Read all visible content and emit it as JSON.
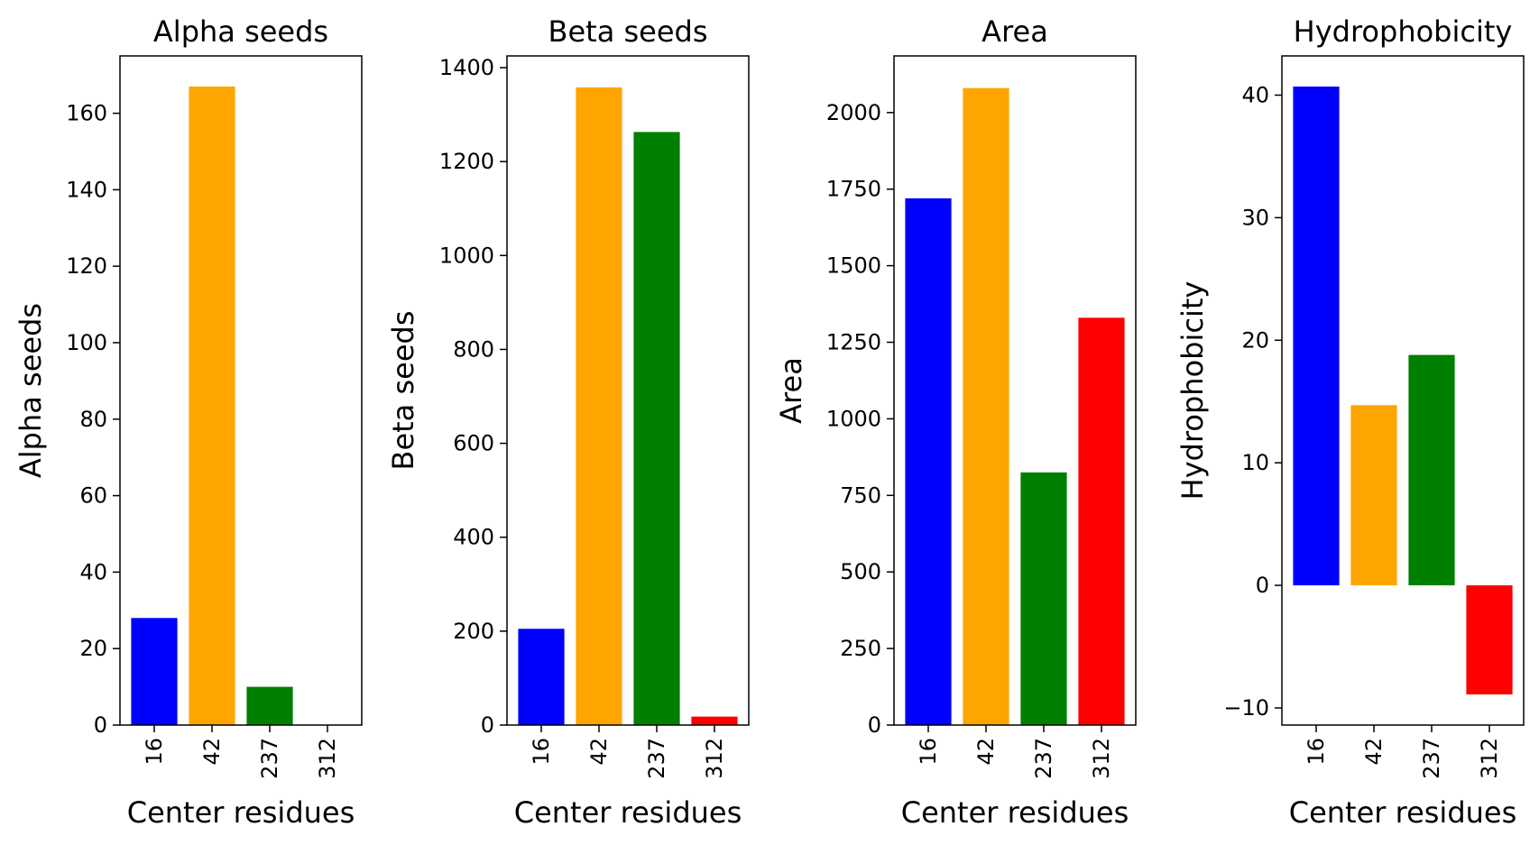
{
  "colors": [
    "#0000ff",
    "#ffa500",
    "#008000",
    "#ff0000"
  ],
  "chart_data": [
    {
      "type": "bar",
      "title": "Alpha seeds",
      "xlabel": "Center residues",
      "ylabel": "Alpha seeds",
      "categories": [
        "16",
        "42",
        "237",
        "312"
      ],
      "values": [
        28,
        167,
        10,
        0
      ],
      "ylim": [
        0,
        175
      ],
      "yticks": [
        0,
        20,
        40,
        60,
        80,
        100,
        120,
        140,
        160
      ],
      "yticklabels": [
        "0",
        "20",
        "40",
        "60",
        "80",
        "100",
        "120",
        "140",
        "160"
      ],
      "grid": false,
      "legend": "none"
    },
    {
      "type": "bar",
      "title": "Beta seeds",
      "xlabel": "Center residues",
      "ylabel": "Beta seeds",
      "categories": [
        "16",
        "42",
        "237",
        "312"
      ],
      "values": [
        205,
        1358,
        1263,
        18
      ],
      "ylim": [
        0,
        1425
      ],
      "yticks": [
        0,
        200,
        400,
        600,
        800,
        1000,
        1200,
        1400
      ],
      "yticklabels": [
        "0",
        "200",
        "400",
        "600",
        "800",
        "1000",
        "1200",
        "1400"
      ],
      "grid": false,
      "legend": "none"
    },
    {
      "type": "bar",
      "title": "Area",
      "xlabel": "Center residues",
      "ylabel": "Area",
      "categories": [
        "16",
        "42",
        "237",
        "312"
      ],
      "values": [
        1720,
        2080,
        825,
        1330
      ],
      "ylim": [
        0,
        2185
      ],
      "yticks": [
        0,
        250,
        500,
        750,
        1000,
        1250,
        1500,
        1750,
        2000
      ],
      "yticklabels": [
        "0",
        "250",
        "500",
        "750",
        "1000",
        "1250",
        "1500",
        "1750",
        "2000"
      ],
      "grid": false,
      "legend": "none"
    },
    {
      "type": "bar",
      "title": "Hydrophobicity",
      "xlabel": "Center residues",
      "ylabel": "Hydrophobicity",
      "categories": [
        "16",
        "42",
        "237",
        "312"
      ],
      "values": [
        40.7,
        14.7,
        18.8,
        -8.9
      ],
      "ylim": [
        -11.4,
        43.2
      ],
      "yticks": [
        -10,
        0,
        10,
        20,
        30,
        40
      ],
      "yticklabels": [
        "−10",
        "0",
        "10",
        "20",
        "30",
        "40"
      ],
      "grid": false,
      "legend": "none"
    }
  ]
}
